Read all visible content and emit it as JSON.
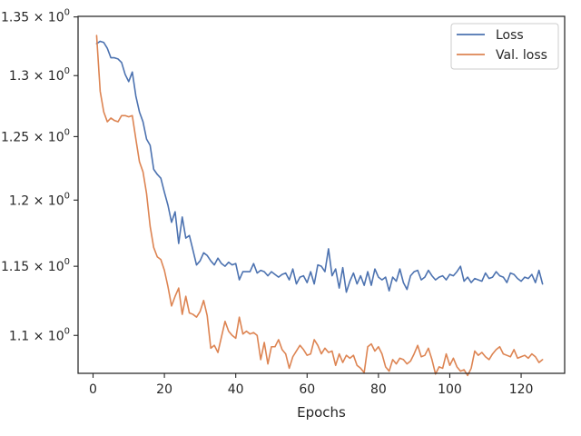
{
  "chart_data": {
    "type": "line",
    "title": "",
    "xlabel": "Epochs",
    "ylabel": "",
    "yscale": "log",
    "xlim": [
      -4.2,
      132.2
    ],
    "ylim": [
      1.0735,
      1.3505
    ],
    "xticks": [
      0,
      20,
      40,
      60,
      80,
      100,
      120
    ],
    "xtick_labels": [
      "0",
      "20",
      "40",
      "60",
      "80",
      "100",
      "120"
    ],
    "yticks": [
      1.1,
      1.15,
      1.2,
      1.25,
      1.3,
      1.35
    ],
    "ytick_labels": [
      {
        "base": "1.1 × 10",
        "exp": "0"
      },
      {
        "base": "1.15 × 10",
        "exp": "0"
      },
      {
        "base": "1.2 × 10",
        "exp": "0"
      },
      {
        "base": "1.25 × 10",
        "exp": "0"
      },
      {
        "base": "1.3 × 10",
        "exp": "0"
      },
      {
        "base": "1.35 × 10",
        "exp": "0"
      }
    ],
    "grid": false,
    "legend": "top-right",
    "x": [
      1,
      2,
      3,
      4,
      5,
      6,
      7,
      8,
      9,
      10,
      11,
      12,
      13,
      14,
      15,
      16,
      17,
      18,
      19,
      20,
      21,
      22,
      23,
      24,
      25,
      26,
      27,
      28,
      29,
      30,
      31,
      32,
      33,
      34,
      35,
      36,
      37,
      38,
      39,
      40,
      41,
      42,
      43,
      44,
      45,
      46,
      47,
      48,
      49,
      50,
      51,
      52,
      53,
      54,
      55,
      56,
      57,
      58,
      59,
      60,
      61,
      62,
      63,
      64,
      65,
      66,
      67,
      68,
      69,
      70,
      71,
      72,
      73,
      74,
      75,
      76,
      77,
      78,
      79,
      80,
      81,
      82,
      83,
      84,
      85,
      86,
      87,
      88,
      89,
      90,
      91,
      92,
      93,
      94,
      95,
      96,
      97,
      98,
      99,
      100,
      101,
      102,
      103,
      104,
      105,
      106,
      107,
      108,
      109,
      110,
      111,
      112,
      113,
      114,
      115,
      116,
      117,
      118,
      119,
      120,
      121,
      122,
      123,
      124,
      125,
      126
    ],
    "series": [
      {
        "name": "Loss",
        "color": "#4c72b0",
        "values": [
          1.327,
          1.329,
          1.328,
          1.323,
          1.315,
          1.315,
          1.314,
          1.311,
          1.301,
          1.295,
          1.303,
          1.283,
          1.27,
          1.262,
          1.248,
          1.243,
          1.224,
          1.22,
          1.217,
          1.206,
          1.196,
          1.183,
          1.191,
          1.167,
          1.187,
          1.171,
          1.173,
          1.162,
          1.151,
          1.154,
          1.16,
          1.158,
          1.154,
          1.151,
          1.156,
          1.152,
          1.15,
          1.153,
          1.151,
          1.152,
          1.14,
          1.146,
          1.146,
          1.146,
          1.152,
          1.145,
          1.147,
          1.146,
          1.143,
          1.146,
          1.144,
          1.142,
          1.144,
          1.145,
          1.14,
          1.148,
          1.137,
          1.142,
          1.143,
          1.138,
          1.146,
          1.137,
          1.151,
          1.15,
          1.146,
          1.163,
          1.143,
          1.148,
          1.134,
          1.149,
          1.131,
          1.139,
          1.145,
          1.137,
          1.143,
          1.136,
          1.146,
          1.136,
          1.148,
          1.142,
          1.14,
          1.142,
          1.132,
          1.142,
          1.139,
          1.148,
          1.138,
          1.133,
          1.143,
          1.146,
          1.147,
          1.14,
          1.142,
          1.147,
          1.143,
          1.14,
          1.142,
          1.143,
          1.14,
          1.144,
          1.143,
          1.146,
          1.15,
          1.139,
          1.142,
          1.138,
          1.141,
          1.14,
          1.139,
          1.145,
          1.141,
          1.142,
          1.146,
          1.143,
          1.142,
          1.138,
          1.145,
          1.144,
          1.141,
          1.139,
          1.142,
          1.141,
          1.144,
          1.138,
          1.147,
          1.137
        ]
      },
      {
        "name": "Val. loss",
        "color": "#dd8452",
        "values": [
          1.334,
          1.287,
          1.27,
          1.262,
          1.265,
          1.263,
          1.262,
          1.267,
          1.267,
          1.266,
          1.267,
          1.248,
          1.23,
          1.222,
          1.205,
          1.18,
          1.164,
          1.157,
          1.155,
          1.147,
          1.135,
          1.121,
          1.128,
          1.134,
          1.115,
          1.128,
          1.116,
          1.115,
          1.113,
          1.117,
          1.125,
          1.114,
          1.091,
          1.093,
          1.088,
          1.099,
          1.11,
          1.103,
          1.1,
          1.098,
          1.113,
          1.101,
          1.103,
          1.101,
          1.102,
          1.1,
          1.083,
          1.095,
          1.08,
          1.092,
          1.092,
          1.097,
          1.09,
          1.087,
          1.077,
          1.085,
          1.089,
          1.093,
          1.09,
          1.086,
          1.087,
          1.097,
          1.093,
          1.087,
          1.091,
          1.088,
          1.089,
          1.079,
          1.087,
          1.081,
          1.086,
          1.084,
          1.086,
          1.079,
          1.077,
          1.074,
          1.092,
          1.094,
          1.089,
          1.092,
          1.087,
          1.078,
          1.075,
          1.083,
          1.08,
          1.084,
          1.083,
          1.08,
          1.082,
          1.087,
          1.093,
          1.085,
          1.086,
          1.091,
          1.083,
          1.073,
          1.078,
          1.077,
          1.087,
          1.079,
          1.084,
          1.078,
          1.075,
          1.076,
          1.072,
          1.077,
          1.089,
          1.086,
          1.088,
          1.085,
          1.083,
          1.087,
          1.09,
          1.092,
          1.087,
          1.086,
          1.085,
          1.09,
          1.084,
          1.085,
          1.086,
          1.084,
          1.087,
          1.085,
          1.081,
          1.083
        ]
      }
    ]
  }
}
